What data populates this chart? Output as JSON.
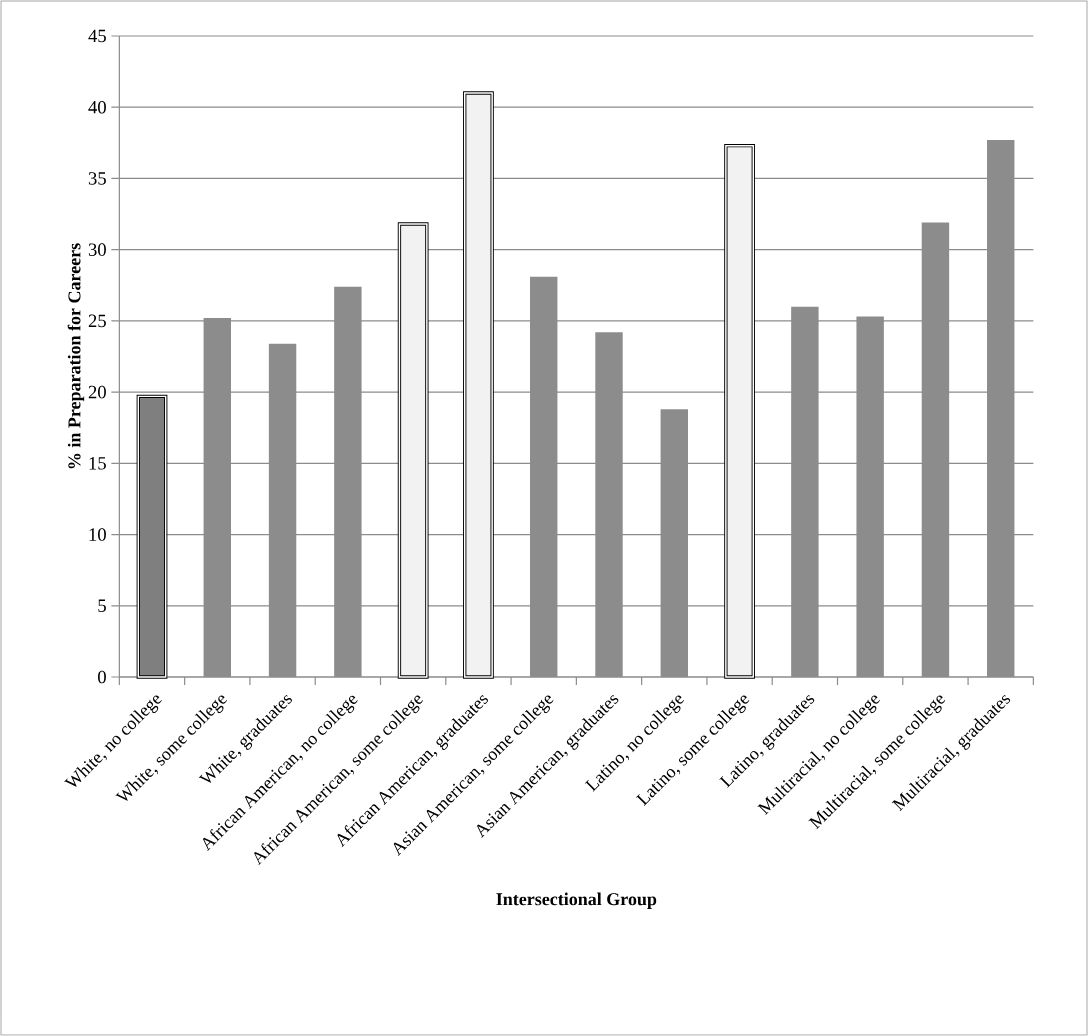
{
  "chart_data": {
    "type": "bar",
    "xlabel": "Intersectional Group",
    "ylabel": "% in Preparation for Careers",
    "categories": [
      "White, no college",
      "White, some college",
      "White, graduates",
      "African American, no college",
      "African American, some college",
      "African American, graduates",
      "Asian American, some college",
      "Asian American, graduates",
      "Latino, no college",
      "Latino, some college",
      "Latino, graduates",
      "Multiracial, no college",
      "Multiracial, some college",
      "Multiracial, graduates"
    ],
    "values": [
      19.7,
      25.2,
      23.4,
      27.4,
      31.8,
      41.0,
      28.1,
      24.2,
      18.8,
      37.3,
      26.0,
      25.3,
      31.9,
      37.7
    ],
    "colors": [
      "#7f7f7f",
      "#8c8c8c",
      "#8c8c8c",
      "#8c8c8c",
      "#f2f2f2",
      "#f2f2f2",
      "#8c8c8c",
      "#8c8c8c",
      "#8c8c8c",
      "#f2f2f2",
      "#8c8c8c",
      "#8c8c8c",
      "#8c8c8c",
      "#8c8c8c"
    ],
    "ylim": [
      0,
      45
    ],
    "yticks": [
      0,
      5,
      10,
      15,
      20,
      25,
      30,
      35,
      40,
      45
    ],
    "grid": "y"
  }
}
